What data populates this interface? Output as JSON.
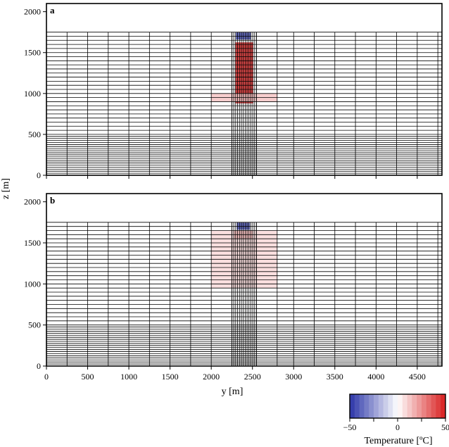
{
  "chart_data": {
    "type": "heatmap",
    "panels": [
      {
        "label": "a",
        "anomaly_blocks": [
          {
            "kind": "cold-cap",
            "y": [
              2300,
              2480
            ],
            "z": [
              1660,
              1745
            ],
            "value": -40
          },
          {
            "kind": "hot-column",
            "y": [
              2290,
              2510
            ],
            "z": [
              880,
              1625
            ],
            "value": 45
          },
          {
            "kind": "warm-layer",
            "y": [
              2000,
              2800
            ],
            "z": [
              900,
              1000
            ],
            "value": 12
          }
        ]
      },
      {
        "label": "b",
        "anomaly_blocks": [
          {
            "kind": "cold-cap",
            "y": [
              2310,
              2470
            ],
            "z": [
              1660,
              1745
            ],
            "value": -40
          },
          {
            "kind": "warm-zone",
            "y": [
              2000,
              2800
            ],
            "z": [
              950,
              1650
            ],
            "value": 8
          },
          {
            "kind": "warmer-core",
            "y": [
              2280,
              2500
            ],
            "z": [
              1550,
              1650
            ],
            "value": 15
          }
        ]
      }
    ],
    "xlabel": "y [m]",
    "ylabel": "z [m]",
    "xlim": [
      0,
      4800
    ],
    "ylim": [
      0,
      2100
    ],
    "xticks": [
      0,
      500,
      1000,
      1500,
      2000,
      2500,
      3000,
      3500,
      4000,
      4500
    ],
    "yticks": [
      0,
      500,
      1000,
      1500,
      2000
    ],
    "mesh": {
      "surface_z": 1750,
      "coarse_y_edges": [
        0,
        250,
        500,
        750,
        1000,
        1250,
        1500,
        1750,
        2000,
        2250,
        2550,
        2800,
        3000,
        3250,
        3500,
        3750,
        4000,
        4250,
        4500,
        4750,
        4800
      ],
      "fine_y_range": [
        2250,
        2550
      ],
      "fine_y_count": 13,
      "fine_z_below": 500,
      "fine_z_step": 25,
      "coarse_z_step": 50
    },
    "colorbar": {
      "title": "Temperature [ºC]",
      "range": [
        -50,
        50
      ],
      "ticks": [
        -50,
        -25,
        0,
        25,
        50
      ],
      "tick_labels": [
        "−50",
        "",
        "0",
        "",
        "50"
      ],
      "cold_color": "#2b35a8",
      "hot_color": "#d81e1e"
    }
  }
}
